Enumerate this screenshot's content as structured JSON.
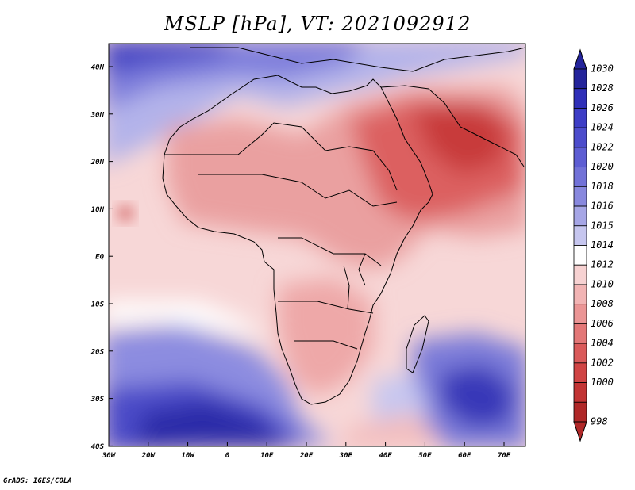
{
  "title": "MSLP [hPa], VT: 2021092912",
  "credit": "GrADS: IGES/COLA",
  "map": {
    "lat_labels": [
      "40N",
      "30N",
      "20N",
      "10N",
      "EQ",
      "10S",
      "20S",
      "30S",
      "40S"
    ],
    "lon_labels": [
      "30W",
      "20W",
      "10W",
      "0",
      "10E",
      "20E",
      "30E",
      "40E",
      "50E",
      "60E",
      "70E"
    ],
    "lat_range": [
      -40,
      45
    ],
    "lon_range": [
      -30,
      77
    ]
  },
  "colorbar": {
    "labels": [
      "1030",
      "1028",
      "1026",
      "1024",
      "1022",
      "1020",
      "1018",
      "1016",
      "1015",
      "1014",
      "1012",
      "1010",
      "1008",
      "1006",
      "1004",
      "1002",
      "1000",
      "998"
    ],
    "colors": [
      "#24249b",
      "#2f2fb8",
      "#3d3dc6",
      "#4c4ccc",
      "#5d5dd3",
      "#7272d8",
      "#8888de",
      "#a6a6e6",
      "#c6c6ef",
      "#ffffff",
      "#f7d2d2",
      "#f2b4b4",
      "#eb9595",
      "#e37777",
      "#da5a5a",
      "#d04444",
      "#c23434",
      "#b02828"
    ]
  }
}
